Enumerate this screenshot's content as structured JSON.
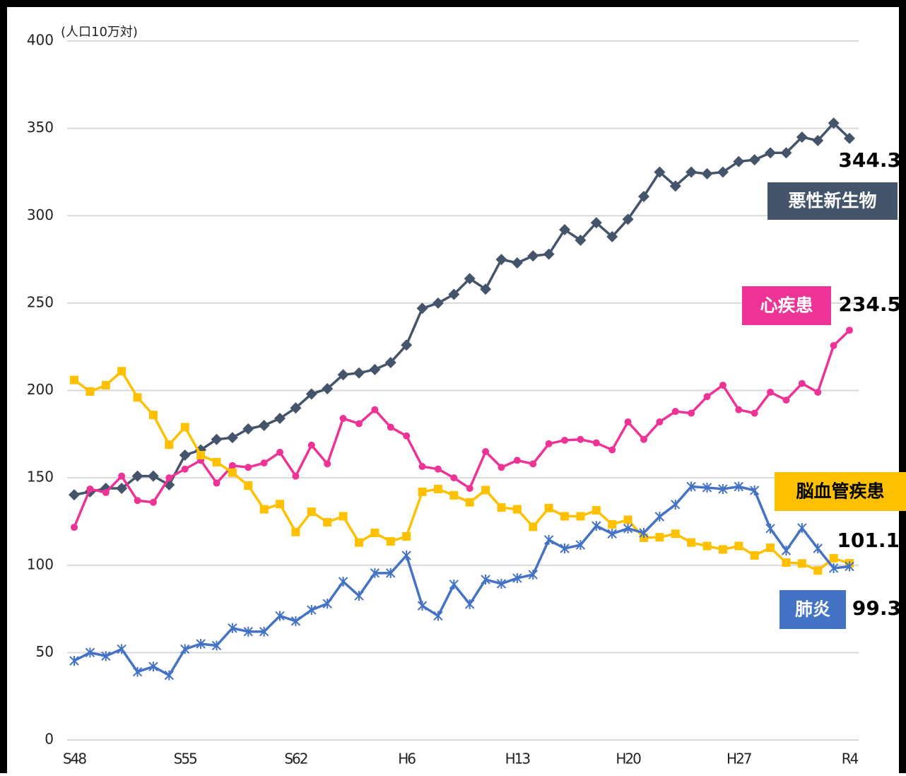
{
  "chart_data": {
    "type": "line",
    "y_label": "(人口10万対)",
    "categories": [
      "S48",
      null,
      null,
      null,
      null,
      null,
      null,
      "S55",
      null,
      null,
      null,
      null,
      null,
      null,
      "S62",
      null,
      null,
      null,
      null,
      null,
      null,
      "H6",
      null,
      null,
      null,
      null,
      null,
      null,
      "H13",
      null,
      null,
      null,
      null,
      null,
      null,
      "H20",
      null,
      null,
      null,
      null,
      null,
      null,
      "H27",
      null,
      null,
      null,
      null,
      null,
      null,
      "R4"
    ],
    "ylim": [
      0,
      400
    ],
    "yticks": [
      0,
      50,
      100,
      150,
      200,
      250,
      300,
      350,
      400
    ],
    "grid": true,
    "series": [
      {
        "name": "悪性新生物",
        "color": "#44546a",
        "marker": "diamond",
        "values": [
          140.3,
          142,
          144,
          144,
          151,
          151,
          146,
          163,
          166,
          172,
          173,
          178,
          180,
          184,
          190,
          198,
          201,
          209,
          210,
          212,
          216,
          226,
          247,
          250,
          255,
          264,
          258,
          275,
          273,
          277,
          278,
          292,
          286,
          296,
          288,
          298,
          311,
          325,
          317,
          325,
          324,
          325,
          331,
          332,
          336,
          336,
          345,
          343,
          353,
          344.3
        ]
      },
      {
        "name": "心疾患",
        "color": "#ee3396",
        "marker": "circle",
        "values": [
          121.7,
          143.6,
          141.6,
          151,
          137,
          136,
          150,
          155,
          160,
          147,
          157,
          156,
          158.5,
          164.6,
          151,
          168.7,
          158,
          184,
          181,
          189,
          179,
          174,
          156.5,
          155,
          150,
          144,
          165,
          156,
          160,
          158,
          169.5,
          171.5,
          172,
          170,
          166,
          182,
          172,
          182,
          188,
          187,
          196.5,
          203,
          189,
          187,
          199,
          194.5,
          204,
          199,
          225.7,
          234.5
        ]
      },
      {
        "name": "脳血管疾患",
        "color": "#ffc000",
        "marker": "square",
        "values": [
          206,
          199.4,
          203,
          211,
          196,
          186,
          169,
          179,
          163,
          159,
          153,
          145.6,
          132,
          135,
          119,
          130.6,
          124.6,
          128,
          113,
          118.5,
          113.6,
          116.5,
          142,
          143.6,
          140,
          136,
          143,
          133,
          132,
          122,
          132.7,
          128,
          128,
          131.4,
          123.4,
          126,
          115.7,
          116,
          118,
          113,
          111,
          109,
          111,
          105.6,
          110,
          101.5,
          101,
          97,
          104,
          101.1
        ]
      },
      {
        "name": "肺炎",
        "color": "#4472c4",
        "marker": "asterisk",
        "values": [
          45.3,
          50,
          48,
          52,
          39,
          42,
          37,
          52,
          55,
          54,
          64,
          62,
          62,
          71,
          68,
          74.4,
          78,
          90.6,
          82.5,
          95.5,
          95.5,
          105.6,
          76.8,
          71,
          89,
          77.7,
          91.8,
          89.4,
          92.6,
          94.6,
          114.5,
          109.6,
          111.6,
          122.5,
          118,
          121,
          118.5,
          127.8,
          134.7,
          145,
          144.4,
          143.6,
          145,
          142.8,
          121,
          108.4,
          121.3,
          109.6,
          98.3,
          99.3
        ]
      }
    ]
  }
}
